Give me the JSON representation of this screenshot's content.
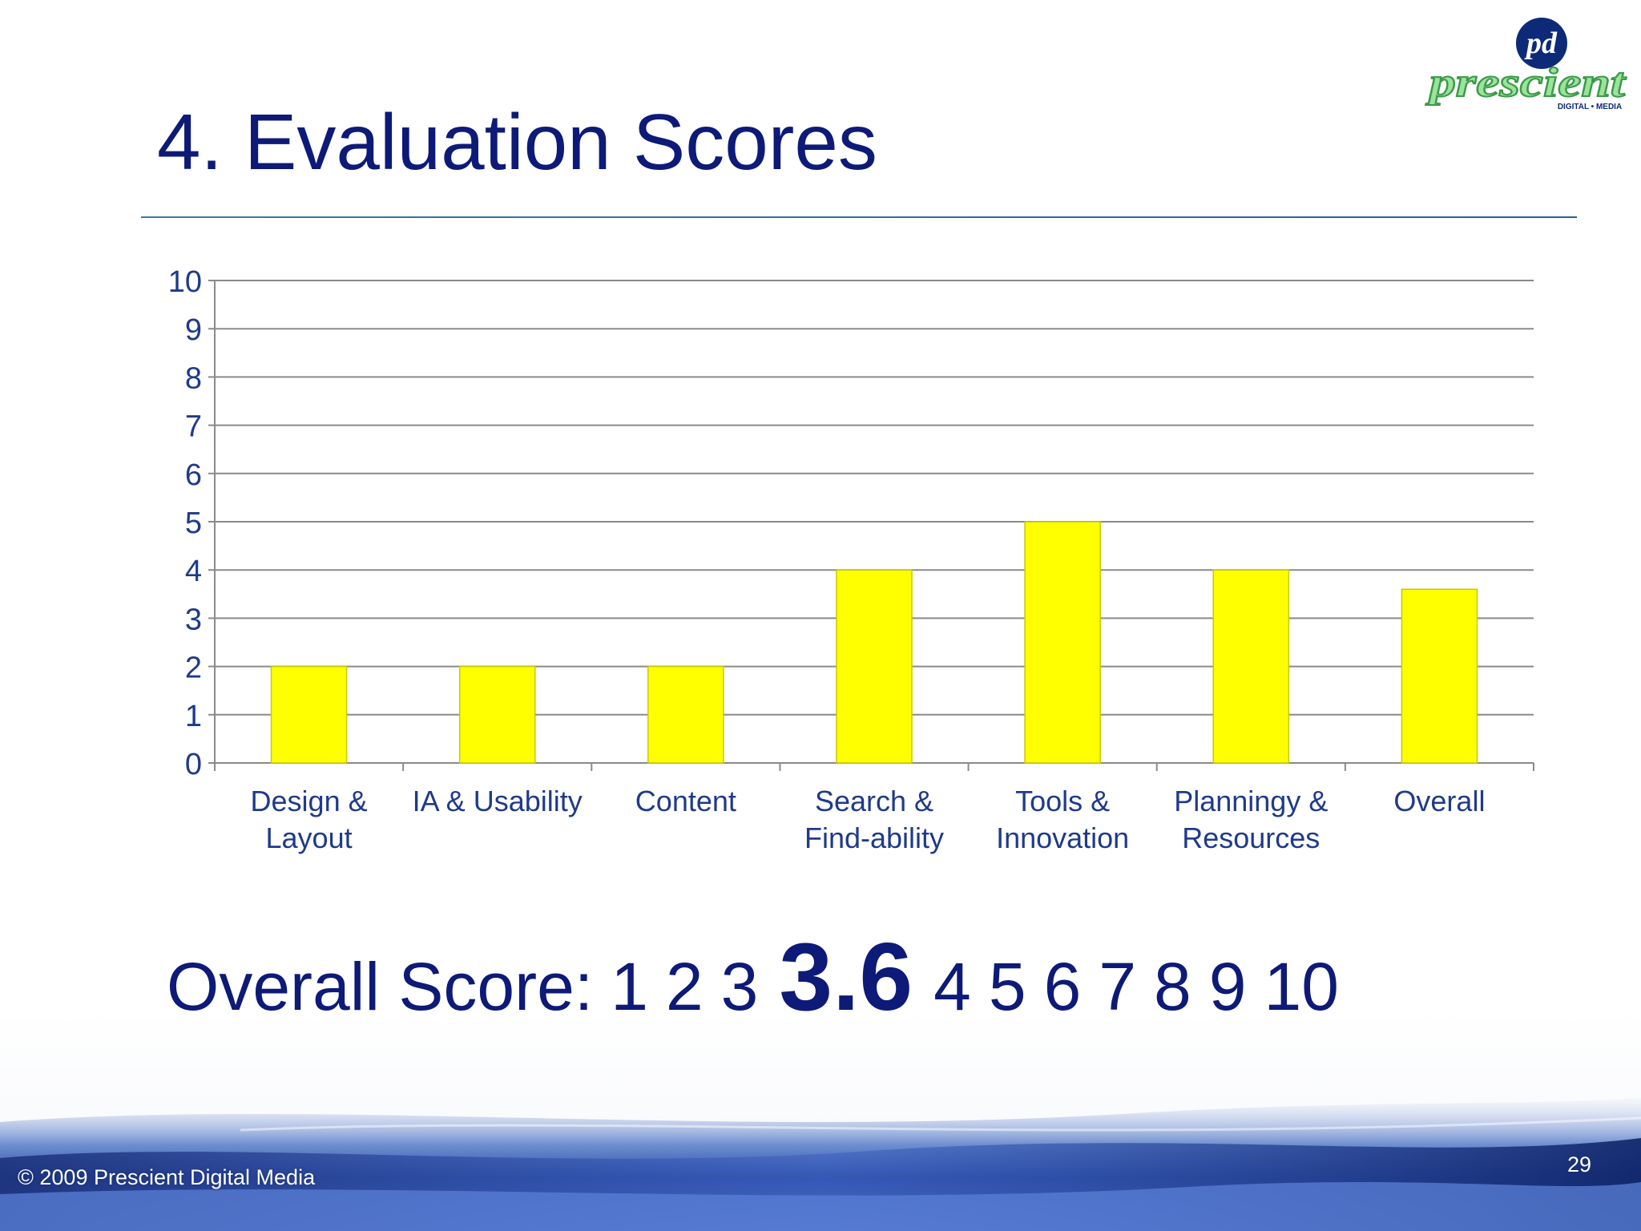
{
  "slide": {
    "title": "4. Evaluation Scores",
    "page_number": "29",
    "copyright": "© 2009 Prescient Digital Media"
  },
  "logo": {
    "monogram": "pd",
    "wordmark": "prescient",
    "tagline": "DIGITAL • MEDIA",
    "colors": {
      "monogram": "#0d2a78",
      "wordmark": "#7ccf7a"
    }
  },
  "chart_data": {
    "type": "bar",
    "categories": [
      [
        "Design &",
        "Layout"
      ],
      [
        "IA & Usability"
      ],
      [
        "Content"
      ],
      [
        "Search &",
        "Find-ability"
      ],
      [
        "Tools &",
        "Innovation"
      ],
      [
        "Planningy &",
        "Resources"
      ],
      [
        "Overall"
      ]
    ],
    "values": [
      2,
      2,
      2,
      4,
      5,
      4,
      3.6
    ],
    "ylim": [
      0,
      10
    ],
    "yticks": [
      0,
      1,
      2,
      3,
      4,
      5,
      6,
      7,
      8,
      9,
      10
    ],
    "grid": true,
    "legend": "none",
    "colors": {
      "bar": "#ffff00",
      "bar_edge": "#c8c800",
      "grid": "#8a8a8a",
      "label": "#1f3a8a"
    }
  },
  "overall_score": {
    "label": "Overall Score:",
    "before": [
      "1",
      "2",
      "3"
    ],
    "highlight": "3.6",
    "after": [
      "4",
      "5",
      "6",
      "7",
      "8",
      "9",
      "10"
    ]
  }
}
